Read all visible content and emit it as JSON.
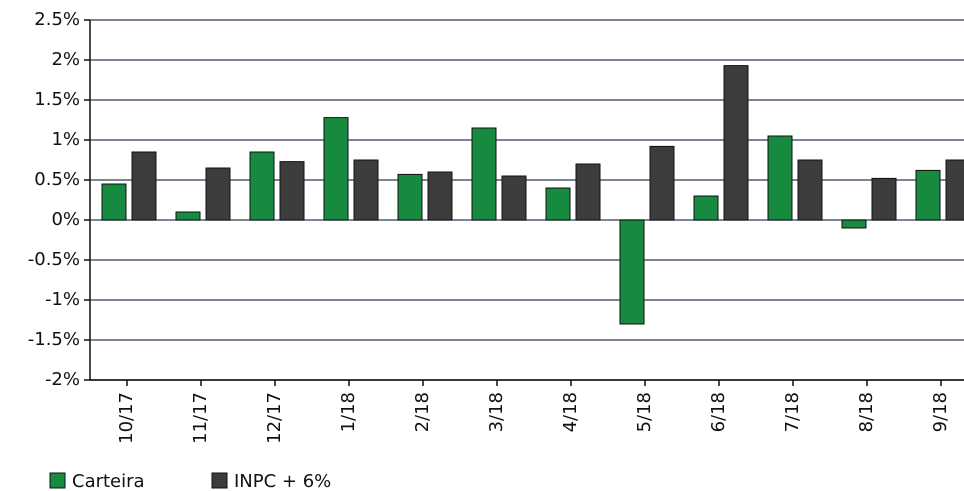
{
  "chart_data": {
    "type": "bar",
    "categories": [
      "10/17",
      "11/17",
      "12/17",
      "1/18",
      "2/18",
      "3/18",
      "4/18",
      "5/18",
      "6/18",
      "7/18",
      "8/18",
      "9/18"
    ],
    "series": [
      {
        "name": "Carteira",
        "color": "#168a3e",
        "values": [
          0.45,
          0.1,
          0.85,
          1.28,
          0.57,
          1.15,
          0.4,
          -1.3,
          0.3,
          1.05,
          -0.1,
          0.62
        ]
      },
      {
        "name": "INPC + 6%",
        "color": "#3c3c3c",
        "values": [
          0.85,
          0.65,
          0.73,
          0.75,
          0.6,
          0.55,
          0.7,
          0.92,
          1.93,
          0.75,
          0.52,
          0.75
        ]
      }
    ],
    "ylim": [
      -2,
      2.5
    ],
    "yticks": [
      {
        "value": -2,
        "label": "-2%"
      },
      {
        "value": -1.5,
        "label": "-1.5%"
      },
      {
        "value": -1,
        "label": "-1%"
      },
      {
        "value": -0.5,
        "label": "-0.5%"
      },
      {
        "value": 0,
        "label": "0%"
      },
      {
        "value": 0.5,
        "label": "0.5%"
      },
      {
        "value": 1,
        "label": "1%"
      },
      {
        "value": 1.5,
        "label": "1.5%"
      },
      {
        "value": 2,
        "label": "2%"
      },
      {
        "value": 2.5,
        "label": "2.5%"
      }
    ],
    "grid": true
  }
}
